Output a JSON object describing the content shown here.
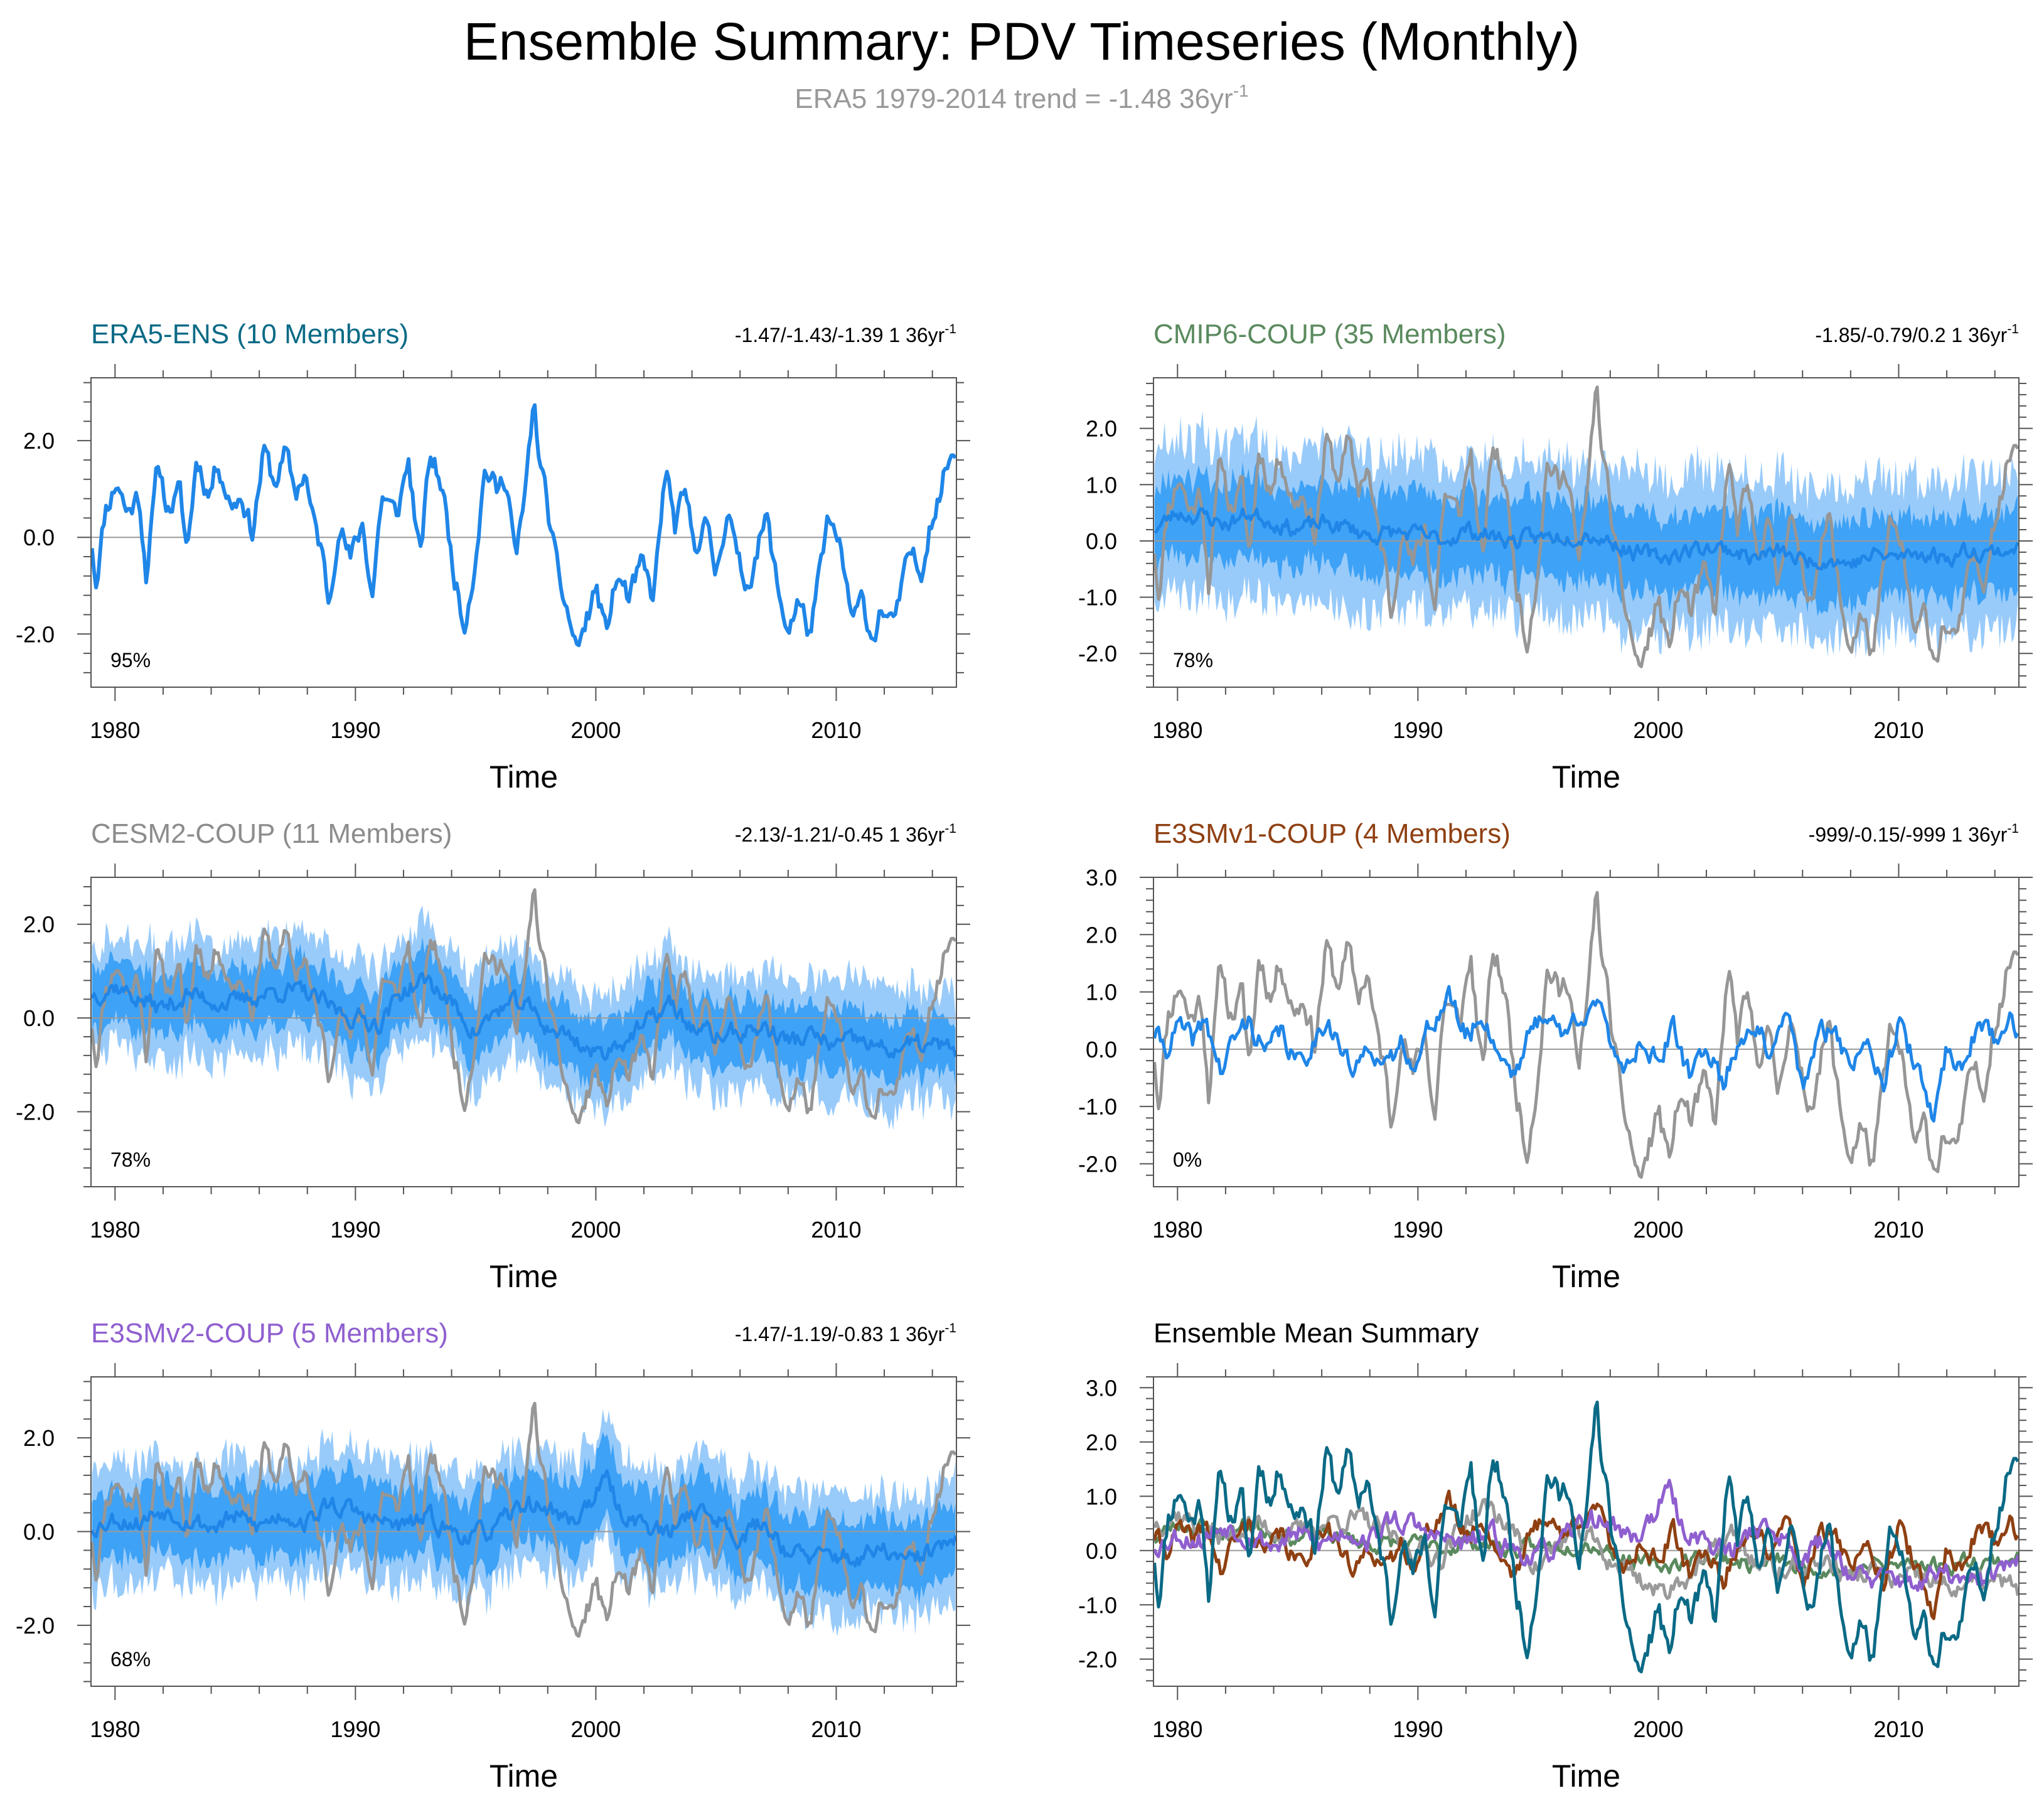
{
  "title": "Ensemble Summary: PDV Timeseries (Monthly)",
  "subtitle_main": "ERA5 1979-2014 trend = -1.48 36yr",
  "subtitle_sup": "-1",
  "colors": {
    "era5": "#0a6a86",
    "obs_gray": "#969696",
    "mean_blue": "#1f86e8",
    "shade_outer": "#99cbfa",
    "shade_inner": "#3ea2f6",
    "cmip6": "#5a8a5e",
    "cesm2": "#8c8c8c",
    "e3smv1": "#8f4012",
    "e3smv2": "#8f5fcf",
    "summary_title": "#000000"
  },
  "chart_data": [
    {
      "id": "era5",
      "type": "line",
      "title": "ERA5-ENS (10 Members)",
      "title_color": "#0a6a86",
      "trend_text": "-1.47/-1.43/-1.39 1 36yr",
      "trend_sup": "-1",
      "percent": "95%",
      "xlabel": "Time",
      "xlim": [
        1979,
        2015
      ],
      "ylim": [
        -3.1,
        3.3
      ],
      "xticks": [
        1980,
        1990,
        2000,
        2010
      ],
      "yticks": [
        -2.0,
        0.0,
        2.0
      ],
      "ytick_labels": [
        "-2.0",
        "0.0",
        "2.0"
      ],
      "band_outer": 0.0,
      "band_inner": 0.0,
      "mean_series": "obs",
      "mean_color": "#1f86e8",
      "show_obs": false
    },
    {
      "id": "cmip6",
      "type": "line",
      "title": "CMIP6-COUP (35 Members)",
      "title_color": "#5a8a5e",
      "trend_text": "-1.85/-0.79/0.2 1 36yr",
      "trend_sup": "-1",
      "percent": "78%",
      "xlabel": "Time",
      "xlim": [
        1979,
        2015
      ],
      "ylim": [
        -2.6,
        2.9
      ],
      "xticks": [
        1980,
        1990,
        2000,
        2010
      ],
      "yticks": [
        -2.0,
        -1.0,
        0.0,
        1.0,
        2.0
      ],
      "ytick_labels": [
        "-2.0",
        "-1.0",
        "0.0",
        "1.0",
        "2.0"
      ],
      "band_outer": 1.35,
      "band_inner": 0.7,
      "mean_series": "cmip6",
      "mean_color": "#1f86e8",
      "show_obs": true
    },
    {
      "id": "cesm2",
      "type": "line",
      "title": "CESM2-COUP (11 Members)",
      "title_color": "#8c8c8c",
      "trend_text": "-2.13/-1.21/-0.45 1 36yr",
      "trend_sup": "-1",
      "percent": "78%",
      "xlabel": "Time",
      "xlim": [
        1979,
        2015
      ],
      "ylim": [
        -3.6,
        3.0
      ],
      "xticks": [
        1980,
        1990,
        2000,
        2010
      ],
      "yticks": [
        -2.0,
        0.0,
        2.0
      ],
      "ytick_labels": [
        "-2.0",
        "0.0",
        "2.0"
      ],
      "band_outer": 1.2,
      "band_inner": 0.65,
      "mean_series": "cesm2",
      "mean_color": "#1f86e8",
      "show_obs": true
    },
    {
      "id": "e3smv1",
      "type": "line",
      "title": "E3SMv1-COUP (4 Members)",
      "title_color": "#8f4012",
      "trend_text": "-999/-0.15/-999 1 36yr",
      "trend_sup": "-1",
      "percent": "0%",
      "xlabel": "Time",
      "xlim": [
        1979,
        2015
      ],
      "ylim": [
        -2.4,
        3.0
      ],
      "xticks": [
        1980,
        1990,
        2000,
        2010
      ],
      "yticks": [
        -2.0,
        -1.0,
        0.0,
        1.0,
        2.0,
        3.0
      ],
      "ytick_labels": [
        "-2.0",
        "-1.0",
        "0.0",
        "1.0",
        "2.0",
        "3.0"
      ],
      "band_outer": 0.0,
      "band_inner": 0.0,
      "mean_series": "e3smv1",
      "mean_color": "#1f86e8",
      "show_obs": true
    },
    {
      "id": "e3smv2",
      "type": "line",
      "title": "E3SMv2-COUP (5 Members)",
      "title_color": "#8f5fcf",
      "trend_text": "-1.47/-1.19/-0.83 1 36yr",
      "trend_sup": "-1",
      "percent": "68%",
      "xlabel": "Time",
      "xlim": [
        1979,
        2015
      ],
      "ylim": [
        -3.3,
        3.3
      ],
      "xticks": [
        1980,
        1990,
        2000,
        2010
      ],
      "yticks": [
        -2.0,
        0.0,
        2.0
      ],
      "ytick_labels": [
        "-2.0",
        "0.0",
        "2.0"
      ],
      "band_outer": 1.25,
      "band_inner": 0.75,
      "mean_series": "e3smv2",
      "mean_color": "#1f86e8",
      "show_obs": true
    },
    {
      "id": "summary",
      "type": "line",
      "title": "Ensemble Mean Summary",
      "title_color": "#000000",
      "trend_text": "",
      "trend_sup": "",
      "percent": "",
      "xlabel": "Time",
      "xlim": [
        1979,
        2015
      ],
      "ylim": [
        -2.5,
        3.2
      ],
      "xticks": [
        1980,
        1990,
        2000,
        2010
      ],
      "yticks": [
        -2.0,
        -1.0,
        0.0,
        1.0,
        2.0,
        3.0
      ],
      "ytick_labels": [
        "-2.0",
        "-1.0",
        "0.0",
        "1.0",
        "2.0",
        "3.0"
      ],
      "band_outer": 0.0,
      "band_inner": 0.0,
      "summary_series": [
        {
          "name": "CMIP6-COUP",
          "key": "cmip6",
          "color": "#5a8a5e"
        },
        {
          "name": "CESM2-COUP",
          "key": "cesm2",
          "color": "#9a9a9a"
        },
        {
          "name": "E3SMv1-COUP",
          "key": "e3smv1",
          "color": "#8f4012"
        },
        {
          "name": "E3SMv2-COUP",
          "key": "e3smv2",
          "color": "#8f5fcf"
        },
        {
          "name": "ERA5-ENS",
          "key": "obs",
          "color": "#0a6a86"
        }
      ]
    }
  ],
  "series_keypoints": {
    "obs": [
      [
        1979.0,
        0.1
      ],
      [
        1979.2,
        -0.9
      ],
      [
        1979.6,
        0.6
      ],
      [
        1980.1,
        1.2
      ],
      [
        1980.5,
        0.5
      ],
      [
        1981.0,
        0.9
      ],
      [
        1981.3,
        -0.7
      ],
      [
        1981.8,
        1.5
      ],
      [
        1982.2,
        0.6
      ],
      [
        1982.7,
        0.9
      ],
      [
        1983.0,
        -0.3
      ],
      [
        1983.4,
        1.7
      ],
      [
        1983.9,
        0.9
      ],
      [
        1984.3,
        1.6
      ],
      [
        1984.8,
        0.7
      ],
      [
        1985.3,
        0.9
      ],
      [
        1985.7,
        0.1
      ],
      [
        1986.2,
        1.8
      ],
      [
        1986.6,
        1.1
      ],
      [
        1987.1,
        1.7
      ],
      [
        1987.5,
        0.9
      ],
      [
        1987.9,
        1.4
      ],
      [
        1988.2,
        0.4
      ],
      [
        1988.6,
        -0.3
      ],
      [
        1988.9,
        -1.4
      ],
      [
        1989.3,
        0.4
      ],
      [
        1989.8,
        -0.5
      ],
      [
        1990.3,
        0.3
      ],
      [
        1990.7,
        -1.2
      ],
      [
        1991.1,
        0.9
      ],
      [
        1991.7,
        0.4
      ],
      [
        1992.2,
        1.6
      ],
      [
        1992.7,
        -0.5
      ],
      [
        1993.1,
        1.7
      ],
      [
        1993.6,
        1.1
      ],
      [
        1994.0,
        -0.4
      ],
      [
        1994.5,
        -1.8
      ],
      [
        1994.9,
        -0.7
      ],
      [
        1995.4,
        1.5
      ],
      [
        1995.9,
        0.9
      ],
      [
        1996.3,
        1.3
      ],
      [
        1996.7,
        -0.5
      ],
      [
        1997.1,
        1.0
      ],
      [
        1997.4,
        2.8
      ],
      [
        1997.7,
        1.5
      ],
      [
        1998.0,
        0.6
      ],
      [
        1998.4,
        -0.8
      ],
      [
        1998.8,
        -1.5
      ],
      [
        1999.2,
        -2.3
      ],
      [
        1999.6,
        -1.8
      ],
      [
        2000.0,
        -1.0
      ],
      [
        2000.4,
        -2.0
      ],
      [
        2000.9,
        -0.8
      ],
      [
        2001.4,
        -1.3
      ],
      [
        2001.9,
        -0.6
      ],
      [
        2002.4,
        -1.3
      ],
      [
        2002.9,
        1.4
      ],
      [
        2003.3,
        0.2
      ],
      [
        2003.7,
        0.8
      ],
      [
        2004.1,
        -0.2
      ],
      [
        2004.5,
        0.4
      ],
      [
        2005.0,
        -0.8
      ],
      [
        2005.5,
        0.8
      ],
      [
        2005.9,
        -0.6
      ],
      [
        2006.3,
        -1.0
      ],
      [
        2006.7,
        -0.2
      ],
      [
        2007.1,
        0.4
      ],
      [
        2007.6,
        -1.2
      ],
      [
        2008.0,
        -1.9
      ],
      [
        2008.4,
        -1.3
      ],
      [
        2008.9,
        -2.0
      ],
      [
        2009.3,
        -0.9
      ],
      [
        2009.7,
        0.4
      ],
      [
        2010.2,
        -0.4
      ],
      [
        2010.7,
        -1.8
      ],
      [
        2011.1,
        -1.3
      ],
      [
        2011.5,
        -2.1
      ],
      [
        2011.9,
        -1.4
      ],
      [
        2012.3,
        -1.9
      ],
      [
        2012.7,
        -1.2
      ],
      [
        2013.1,
        -0.3
      ],
      [
        2013.5,
        -0.8
      ],
      [
        2013.9,
        0.4
      ],
      [
        2014.3,
        0.9
      ],
      [
        2014.7,
        1.7
      ]
    ],
    "cmip6": [
      [
        1979.0,
        0.2
      ],
      [
        1980.0,
        0.5
      ],
      [
        1981.0,
        0.45
      ],
      [
        1982.0,
        0.3
      ],
      [
        1983.0,
        0.5
      ],
      [
        1984.0,
        0.35
      ],
      [
        1985.0,
        0.2
      ],
      [
        1986.0,
        0.3
      ],
      [
        1987.0,
        0.25
      ],
      [
        1988.0,
        0.1
      ],
      [
        1989.0,
        0.15
      ],
      [
        1990.0,
        0.1
      ],
      [
        1991.0,
        0.0
      ],
      [
        1992.0,
        0.2
      ],
      [
        1993.0,
        0.1
      ],
      [
        1994.0,
        0.0
      ],
      [
        1995.0,
        0.05
      ],
      [
        1996.0,
        0.1
      ],
      [
        1997.0,
        0.15
      ],
      [
        1998.0,
        0.0
      ],
      [
        1999.0,
        -0.2
      ],
      [
        2000.0,
        -0.3
      ],
      [
        2001.0,
        -0.2
      ],
      [
        2002.0,
        -0.1
      ],
      [
        2003.0,
        -0.15
      ],
      [
        2004.0,
        -0.3
      ],
      [
        2005.0,
        -0.2
      ],
      [
        2006.0,
        -0.35
      ],
      [
        2007.0,
        -0.3
      ],
      [
        2008.0,
        -0.4
      ],
      [
        2009.0,
        -0.25
      ],
      [
        2010.0,
        -0.3
      ],
      [
        2011.0,
        -0.2
      ],
      [
        2012.0,
        -0.3
      ],
      [
        2013.0,
        -0.15
      ],
      [
        2014.0,
        -0.2
      ],
      [
        2015.0,
        -0.1
      ]
    ],
    "cesm2": [
      [
        1979.0,
        0.5
      ],
      [
        1980.0,
        0.7
      ],
      [
        1981.0,
        0.4
      ],
      [
        1982.0,
        0.2
      ],
      [
        1983.0,
        0.5
      ],
      [
        1984.0,
        0.4
      ],
      [
        1985.0,
        0.3
      ],
      [
        1986.0,
        0.5
      ],
      [
        1987.0,
        0.6
      ],
      [
        1988.0,
        0.5
      ],
      [
        1989.0,
        0.2
      ],
      [
        1990.0,
        0.0
      ],
      [
        1991.0,
        -0.1
      ],
      [
        1992.0,
        0.6
      ],
      [
        1993.0,
        0.8
      ],
      [
        1994.0,
        0.3
      ],
      [
        1995.0,
        -0.3
      ],
      [
        1996.0,
        0.2
      ],
      [
        1997.0,
        0.3
      ],
      [
        1998.0,
        -0.2
      ],
      [
        1999.0,
        -0.4
      ],
      [
        2000.0,
        -0.8
      ],
      [
        2001.0,
        -0.5
      ],
      [
        2002.0,
        -0.2
      ],
      [
        2003.0,
        0.3
      ],
      [
        2004.0,
        -0.2
      ],
      [
        2005.0,
        -0.4
      ],
      [
        2006.0,
        -0.3
      ],
      [
        2007.0,
        -0.2
      ],
      [
        2008.0,
        -0.5
      ],
      [
        2009.0,
        -0.4
      ],
      [
        2010.0,
        -0.6
      ],
      [
        2011.0,
        -0.5
      ],
      [
        2012.0,
        -0.7
      ],
      [
        2013.0,
        -0.6
      ],
      [
        2014.0,
        -0.6
      ],
      [
        2015.0,
        -0.7
      ]
    ],
    "e3smv1": [
      [
        1979.0,
        0.3
      ],
      [
        1979.5,
        0.0
      ],
      [
        1980.0,
        0.4
      ],
      [
        1980.6,
        0.1
      ],
      [
        1981.2,
        0.5
      ],
      [
        1981.8,
        -0.4
      ],
      [
        1982.4,
        0.2
      ],
      [
        1983.0,
        0.5
      ],
      [
        1983.7,
        -0.1
      ],
      [
        1984.3,
        0.3
      ],
      [
        1985.0,
        -0.3
      ],
      [
        1985.6,
        0.1
      ],
      [
        1986.2,
        0.6
      ],
      [
        1986.8,
        0.0
      ],
      [
        1987.4,
        -0.5
      ],
      [
        1988.0,
        0.2
      ],
      [
        1988.7,
        -0.4
      ],
      [
        1989.3,
        0.1
      ],
      [
        1990.0,
        -0.2
      ],
      [
        1990.6,
        0.5
      ],
      [
        1991.3,
        0.9
      ],
      [
        1992.0,
        0.2
      ],
      [
        1992.7,
        0.6
      ],
      [
        1993.3,
        0.0
      ],
      [
        1994.0,
        -0.4
      ],
      [
        1994.7,
        0.3
      ],
      [
        1995.4,
        0.7
      ],
      [
        1996.0,
        0.2
      ],
      [
        1996.7,
        0.6
      ],
      [
        1997.3,
        0.9
      ],
      [
        1998.0,
        0.1
      ],
      [
        1998.7,
        -0.3
      ],
      [
        1999.3,
        0.2
      ],
      [
        2000.0,
        -0.2
      ],
      [
        2000.6,
        0.3
      ],
      [
        2001.3,
        -0.5
      ],
      [
        2002.0,
        0.1
      ],
      [
        2002.7,
        -0.6
      ],
      [
        2003.4,
        0.2
      ],
      [
        2004.0,
        0.5
      ],
      [
        2004.7,
        -0.2
      ],
      [
        2005.4,
        0.6
      ],
      [
        2006.0,
        -0.7
      ],
      [
        2006.7,
        0.2
      ],
      [
        2007.4,
        0.4
      ],
      [
        2008.0,
        -0.4
      ],
      [
        2008.7,
        0.3
      ],
      [
        2009.4,
        -0.5
      ],
      [
        2010.0,
        0.4
      ],
      [
        2010.7,
        -0.3
      ],
      [
        2011.4,
        -1.2
      ],
      [
        2012.0,
        0.0
      ],
      [
        2012.7,
        -0.3
      ],
      [
        2013.4,
        0.6
      ],
      [
        2014.0,
        0.1
      ],
      [
        2014.5,
        0.5
      ],
      [
        2015.0,
        0.4
      ]
    ],
    "e3smv2": [
      [
        1979.0,
        0.1
      ],
      [
        1980.0,
        0.3
      ],
      [
        1981.0,
        0.2
      ],
      [
        1982.0,
        0.5
      ],
      [
        1983.0,
        0.3
      ],
      [
        1984.0,
        0.1
      ],
      [
        1985.0,
        0.3
      ],
      [
        1986.0,
        0.1
      ],
      [
        1987.0,
        0.4
      ],
      [
        1988.0,
        0.2
      ],
      [
        1989.0,
        0.6
      ],
      [
        1990.0,
        0.4
      ],
      [
        1991.0,
        0.2
      ],
      [
        1992.0,
        0.1
      ],
      [
        1993.0,
        0.3
      ],
      [
        1994.0,
        0.0
      ],
      [
        1995.0,
        -0.1
      ],
      [
        1996.0,
        0.1
      ],
      [
        1997.0,
        0.6
      ],
      [
        1998.0,
        0.5
      ],
      [
        1999.0,
        0.2
      ],
      [
        2000.0,
        0.8
      ],
      [
        2000.5,
        1.1
      ],
      [
        2001.0,
        0.4
      ],
      [
        2002.0,
        0.2
      ],
      [
        2003.0,
        -0.1
      ],
      [
        2004.0,
        0.5
      ],
      [
        2005.0,
        0.3
      ],
      [
        2006.0,
        -0.1
      ],
      [
        2007.0,
        0.2
      ],
      [
        2008.0,
        -0.4
      ],
      [
        2009.0,
        -0.6
      ],
      [
        2010.0,
        -0.5
      ],
      [
        2011.0,
        -0.6
      ],
      [
        2012.0,
        -0.4
      ],
      [
        2013.0,
        -0.7
      ],
      [
        2014.0,
        -0.4
      ],
      [
        2015.0,
        -0.2
      ]
    ]
  }
}
